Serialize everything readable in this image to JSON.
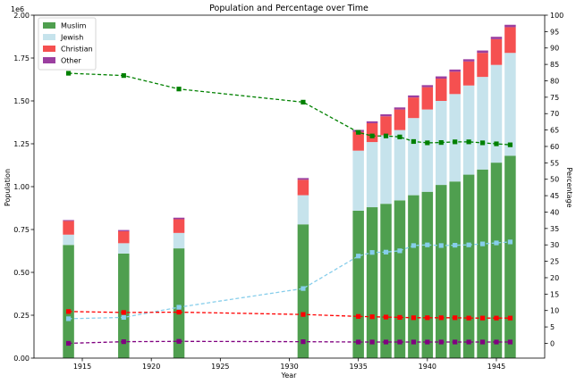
{
  "chart_data": {
    "type": "bar",
    "title": "Population and Percentage over Time",
    "xlabel": "Year",
    "ylabel": "Population",
    "y2label": "Percentage",
    "y_offset_text": "1e6",
    "xlim": [
      1911.5,
      1948.5
    ],
    "ylim": [
      0,
      2.0
    ],
    "y2lim": [
      -4.5,
      100
    ],
    "x_ticks": [
      1915,
      1920,
      1925,
      1930,
      1935,
      1940,
      1945
    ],
    "y_ticks": [
      0.0,
      0.25,
      0.5,
      0.75,
      1.0,
      1.25,
      1.5,
      1.75,
      2.0
    ],
    "y_tick_labels": [
      "0.00",
      "0.25",
      "0.50",
      "0.75",
      "1.00",
      "1.25",
      "1.50",
      "1.75",
      "2.00"
    ],
    "y2_ticks": [
      0,
      5,
      10,
      15,
      20,
      25,
      30,
      35,
      40,
      45,
      50,
      55,
      60,
      65,
      70,
      75,
      80,
      85,
      90,
      95,
      100
    ],
    "legend_position": "top-left",
    "years": [
      1914,
      1918,
      1922,
      1931,
      1935,
      1936,
      1937,
      1938,
      1939,
      1940,
      1941,
      1942,
      1943,
      1944,
      1945,
      1946
    ],
    "series": [
      {
        "name": "Muslim",
        "color": "#4f9f4f",
        "line_color": "#008000",
        "line_style": "dashed",
        "values": [
          0.66,
          0.61,
          0.64,
          0.78,
          0.86,
          0.88,
          0.9,
          0.92,
          0.95,
          0.97,
          1.01,
          1.03,
          1.07,
          1.1,
          1.14,
          1.18
        ],
        "percentages": [
          82.3,
          81.6,
          77.5,
          73.5,
          64.3,
          63.2,
          63.2,
          62.9,
          61.5,
          61.1,
          61.2,
          61.4,
          61.4,
          61.1,
          60.8,
          60.5
        ]
      },
      {
        "name": "Jewish",
        "color": "#c6e3ec",
        "line_color": "#87ceeb",
        "line_style": "dashed",
        "values": [
          0.06,
          0.06,
          0.09,
          0.17,
          0.35,
          0.38,
          0.4,
          0.41,
          0.45,
          0.48,
          0.49,
          0.51,
          0.52,
          0.54,
          0.57,
          0.6
        ],
        "percentages": [
          7.5,
          7.9,
          11.0,
          16.7,
          26.6,
          27.7,
          27.8,
          28.2,
          29.8,
          30.0,
          29.8,
          29.9,
          30.0,
          30.3,
          30.6,
          30.9
        ]
      },
      {
        "name": "Christian",
        "color": "#f55050",
        "line_color": "#ff0000",
        "line_style": "dashed",
        "values": [
          0.08,
          0.07,
          0.08,
          0.09,
          0.11,
          0.11,
          0.11,
          0.12,
          0.12,
          0.13,
          0.13,
          0.13,
          0.14,
          0.14,
          0.15,
          0.15
        ],
        "percentages": [
          9.7,
          9.4,
          9.5,
          8.8,
          8.2,
          8.1,
          8.0,
          7.9,
          7.8,
          7.8,
          7.8,
          7.8,
          7.7,
          7.7,
          7.7,
          7.7
        ]
      },
      {
        "name": "Other",
        "color": "#9b3fa0",
        "line_color": "#800080",
        "line_style": "dashed",
        "values": [
          0.005,
          0.007,
          0.009,
          0.01,
          0.011,
          0.011,
          0.012,
          0.012,
          0.012,
          0.012,
          0.013,
          0.013,
          0.013,
          0.014,
          0.014,
          0.014
        ],
        "percentages": [
          0.0,
          0.5,
          0.6,
          0.5,
          0.4,
          0.4,
          0.4,
          0.4,
          0.4,
          0.4,
          0.4,
          0.4,
          0.4,
          0.4,
          0.4,
          0.4
        ]
      }
    ]
  }
}
